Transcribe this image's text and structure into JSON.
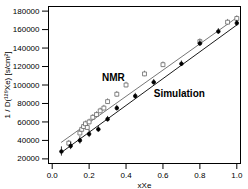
{
  "chart_data": {
    "type": "scatter",
    "x_label": "xXe",
    "y_label": "1 / D(¹²⁹Xe) [s/cm²]",
    "xlim": [
      -0.02,
      1.02
    ],
    "ylim": [
      15000,
      185000
    ],
    "xticks": [
      {
        "value": 0,
        "label": "0.0"
      },
      {
        "value": 0.2,
        "label": "0.2"
      },
      {
        "value": 0.4,
        "label": "0.4"
      },
      {
        "value": 0.6,
        "label": "0.6"
      },
      {
        "value": 0.8,
        "label": "0.8"
      },
      {
        "value": 1,
        "label": "1.0"
      }
    ],
    "yticks": [
      20000,
      40000,
      60000,
      80000,
      100000,
      120000,
      140000,
      160000,
      180000
    ],
    "grid": false,
    "series": [
      {
        "name": "NMR",
        "color": "#666666",
        "marker": "square",
        "x": [
          0.09,
          0.15,
          0.16,
          0.17,
          0.18,
          0.19,
          0.2,
          0.22,
          0.24,
          0.26,
          0.28,
          0.3,
          0.35,
          0.4,
          0.5,
          0.6,
          0.8,
          0.95,
          1.0
        ],
        "values": [
          37000,
          48000,
          52000,
          55000,
          58000,
          54000,
          60000,
          65000,
          68000,
          72000,
          75000,
          82000,
          90000,
          100000,
          112000,
          122000,
          147000,
          168000,
          172000
        ],
        "errors": [
          3000,
          3000,
          3000,
          3000,
          3000,
          3000,
          3000,
          3000,
          3000,
          3000,
          3000,
          3000,
          3000,
          3000,
          3000,
          3000,
          3000,
          3000,
          3000
        ],
        "fit_x": [
          0.05,
          1.0
        ],
        "fit_values": [
          38000,
          173000
        ],
        "label_x": 0.27,
        "label_y": 108000
      },
      {
        "name": "Simulation",
        "color": "#000000",
        "marker": "circle",
        "x": [
          0.05,
          0.1,
          0.15,
          0.2,
          0.25,
          0.3,
          0.35,
          0.45,
          0.55,
          0.7,
          0.8,
          0.9,
          1.0
        ],
        "values": [
          28000,
          34000,
          40000,
          47000,
          52000,
          63000,
          75000,
          88000,
          103000,
          123000,
          145000,
          158000,
          167000
        ],
        "errors": [
          5000,
          4000,
          4000,
          4000,
          3000,
          3000,
          3000,
          3000,
          3000,
          3000,
          3000,
          3000,
          3000
        ],
        "fit_x": [
          0.05,
          1.0
        ],
        "fit_values": [
          27000,
          165000
        ],
        "label_x": 0.55,
        "label_y": 90000
      }
    ]
  }
}
